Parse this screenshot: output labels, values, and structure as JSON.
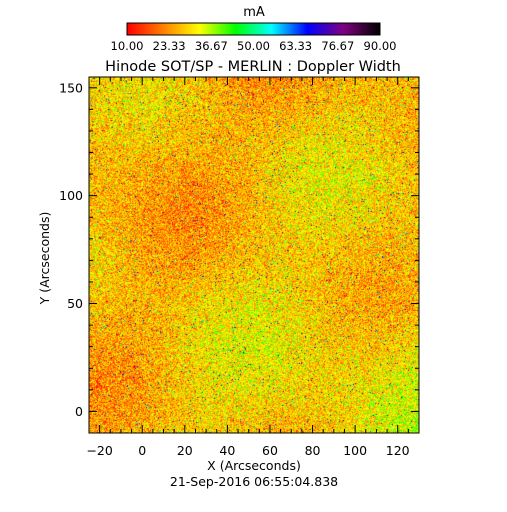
{
  "chart_data": {
    "type": "heatmap",
    "title": "Hinode SOT/SP - MERLIN : Doppler Width",
    "xlabel": "X (Arcseconds)",
    "ylabel": "Y (Arcseconds)",
    "date_label": "21-Sep-2016 06:55:04.838",
    "xlim": [
      -25,
      130
    ],
    "ylim": [
      -10,
      155
    ],
    "x_ticks": [
      -20,
      0,
      20,
      40,
      60,
      80,
      100,
      120
    ],
    "y_ticks": [
      0,
      50,
      100,
      150
    ],
    "x_tick_labels": [
      "−20",
      "0",
      "20",
      "40",
      "60",
      "80",
      "100",
      "120"
    ],
    "y_tick_labels": [
      "0",
      "50",
      "100",
      "150"
    ],
    "colorbar": {
      "label": "mA",
      "min": 10,
      "max": 90,
      "tick_values": [
        10,
        23.33,
        36.67,
        50,
        63.33,
        76.67,
        90
      ],
      "tick_labels": [
        "10.00",
        "23.33",
        "36.67",
        "50.00",
        "63.33",
        "76.67",
        "90.00"
      ],
      "colormap": [
        "#ff0000",
        "#ff8000",
        "#ffff00",
        "#00ff00",
        "#00ffff",
        "#0000ff",
        "#800080",
        "#000000"
      ]
    },
    "field_summary": {
      "dominant_range": [
        15,
        45
      ],
      "typical_value": 28,
      "sparse_high_values": [
        60,
        85
      ]
    },
    "grid": false
  }
}
